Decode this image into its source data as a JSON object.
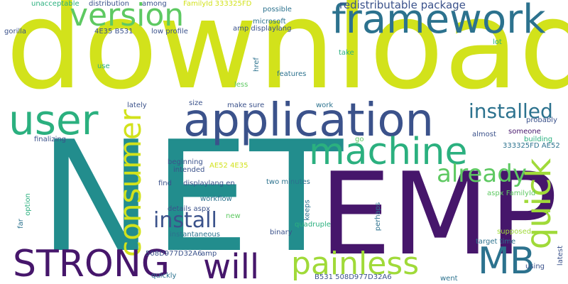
{
  "words": {
    "download": "download",
    "net": "NET",
    "emp": "EMP",
    "application": "application",
    "framework": "framework",
    "version": "version",
    "user": "user",
    "machine": "machine",
    "installed": "installed",
    "consumer": "consumer",
    "already": "already",
    "quick": "quick",
    "install": "install",
    "strong": "STRONG",
    "will": "will",
    "painless": "painless",
    "mb": "MB",
    "redistributable_package": "redistributable package",
    "unacceptable": "unacceptable",
    "distribution": "distribution",
    "among": "among",
    "familyid_333325fd": "FamilyId 333325FD",
    "possible": "possible",
    "gorilla": "gorilla",
    "4e35_b531": "4E35 B531",
    "low_profile": "low profile",
    "amp_displaylang": "amp displaylang",
    "microsoft": "microsoft",
    "lot": "lot",
    "take": "take",
    "use": "use",
    "href": "href",
    "less": "less",
    "features": "features",
    "lately": "lately",
    "size": "size",
    "make_sure": "make sure",
    "work": "work",
    "finalizing": "finalizing",
    "go": "go",
    "almost": "almost",
    "someone": "someone",
    "probably": "probably",
    "building": "building",
    "aes2_guid": "333325FD AE52",
    "beginning": "beginning",
    "intended": "intended",
    "ae52_4e35": "AE52 4E35",
    "find": "find",
    "displaylang_en": "displaylang en",
    "two_minutes": "two minutes",
    "option": "option",
    "far": "far",
    "workflow": "workflow",
    "details_aspx": "details aspx",
    "new": "new",
    "keeps": "keeps",
    "perhaps": "perhaps",
    "aspx_familyid": "aspx FamilyId",
    "quadruple": "quadruple",
    "instantaneous": "instantaneous",
    "binary": "binary",
    "supposed": "supposed",
    "guid_508d": "508D977D32A6",
    "amp": "amp",
    "target_time": "target time",
    "latest": "latest",
    "quickly": "quickly",
    "using": "using",
    "b531_508d": "B531 508D977D32A6",
    "went": "went"
  },
  "colors": {
    "lime": "#d2e21b",
    "teal": "#228d8d",
    "purple": "#46166b",
    "indigo": "#3b528b",
    "green": "#2bb07f",
    "lightgreen": "#5ec962",
    "yellowgreen": "#a0da39",
    "blue": "#2c728e"
  }
}
